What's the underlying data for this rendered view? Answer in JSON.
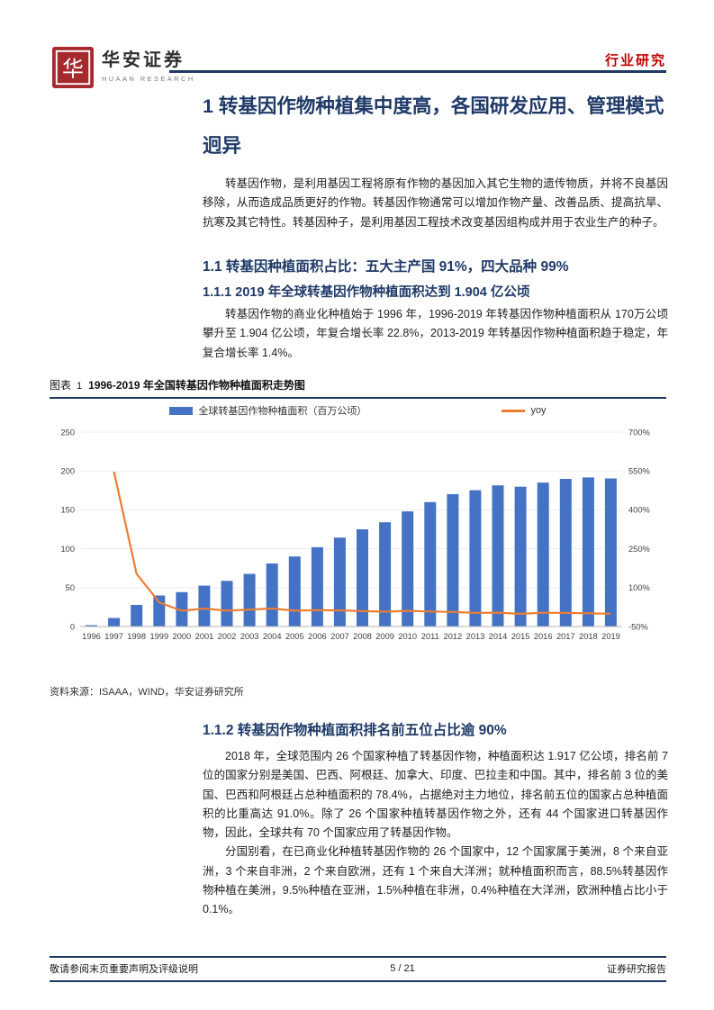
{
  "header": {
    "logo_title": "华安证券",
    "logo_subtitle": "HUAAN RESEARCH",
    "category": "行业研究"
  },
  "title": "1 转基因作物种植集中度高，各国研发应用、管理模式迥异",
  "intro": "转基因作物，是利用基因工程将原有作物的基因加入其它生物的遗传物质，并将不良基因移除，从而造成品质更好的作物。转基因作物通常可以增加作物产量、改善品质、提高抗旱、抗寒及其它特性。转基因种子，是利用基因工程技术改变基因组构成并用于农业生产的种子。",
  "section_1_1_heading": "1.1 转基因种植面积占比：五大主产国 91%，四大品种 99%",
  "section_1_1_1_heading": "1.1.1 2019 年全球转基因作物种植面积达到 1.904 亿公顷",
  "section_1_1_1_para": "转基因作物的商业化种植始于 1996 年，1996-2019 年转基因作物种植面积从 170万公顷攀升至 1.904 亿公顷，年复合增长率 22.8%，2013-2019 年转基因作物种植面积趋于稳定，年复合增长率 1.4%。",
  "figure": {
    "label": "图表",
    "number": "1",
    "caption": "1996-2019 年全国转基因作物种植面积走势图",
    "source": "资料来源：ISAAA，WIND，华安证券研究所"
  },
  "section_1_1_2_heading": "1.1.2 转基因作物种植面积排名前五位占比逾 90%",
  "section_1_1_2_para_a": "2018 年，全球范围内 26 个国家种植了转基因作物，种植面积达 1.917 亿公顷，排名前 7 位的国家分别是美国、巴西、阿根廷、加拿大、印度、巴拉圭和中国。其中，排名前 3 位的美国、巴西和阿根廷占总种植面积的 78.4%，占据绝对主力地位，排名前五位的国家占总种植面积的比重高达 91.0%。除了 26 个国家种植转基因作物之外，还有 44 个国家进口转基因作物，因此，全球共有 70 个国家应用了转基因作物。",
  "section_1_1_2_para_b": "分国别看，在已商业化种植转基因作物的 26 个国家中，12 个国家属于美洲，8 个来自亚洲，3 个来自非洲，2 个来自欧洲，还有 1 个来自大洋洲；就种植面积而言，88.5%转基因作物种植在美洲，9.5%种植在亚洲，1.5%种植在非洲，0.4%种植在大洋洲，欧洲种植占比小于 0.1%。",
  "footer": {
    "left": "敬请参阅末页重要声明及评级说明",
    "page": "5 / 21",
    "right": "证券研究报告"
  },
  "colors": {
    "navy": "#1F3864",
    "accent_red": "#C00000",
    "bar_blue": "#4472C4",
    "line_orange": "#ED7D31"
  },
  "chart_data": {
    "type": "bar",
    "title": "1996-2019 年全国转基因作物种植面积走势图",
    "categories": [
      1996,
      1997,
      1998,
      1999,
      2000,
      2001,
      2002,
      2003,
      2004,
      2005,
      2006,
      2007,
      2008,
      2009,
      2010,
      2011,
      2012,
      2013,
      2014,
      2015,
      2016,
      2017,
      2018,
      2019
    ],
    "series": [
      {
        "name": "全球转基因作物种植面积（百万公顷）",
        "type": "bar",
        "axis": "left",
        "color": "#4472C4",
        "values": [
          1.7,
          11.0,
          27.8,
          39.9,
          44.2,
          52.6,
          58.7,
          67.7,
          81.0,
          90.0,
          102.0,
          114.3,
          125.0,
          134.0,
          148.0,
          160.0,
          170.3,
          175.2,
          181.5,
          179.7,
          185.1,
          189.8,
          191.7,
          190.4
        ]
      },
      {
        "name": "yoy",
        "type": "line",
        "axis": "right",
        "color": "#ED7D31",
        "values": [
          null,
          547,
          153,
          43.5,
          10.8,
          19.0,
          11.6,
          15.3,
          19.6,
          11.1,
          13.3,
          12.1,
          9.4,
          7.2,
          10.4,
          8.1,
          6.4,
          2.9,
          3.6,
          -1.0,
          3.0,
          2.5,
          1.0,
          -0.7
        ]
      }
    ],
    "left_axis": {
      "min": 0,
      "max": 250,
      "ticks": [
        0,
        50,
        100,
        150,
        200,
        250
      ]
    },
    "right_axis": {
      "min": -50,
      "max": 700,
      "ticks": [
        "-50%",
        "100%",
        "250%",
        "400%",
        "550%",
        "700%"
      ]
    },
    "grid": "faint horizontal",
    "legend_position": "top"
  }
}
